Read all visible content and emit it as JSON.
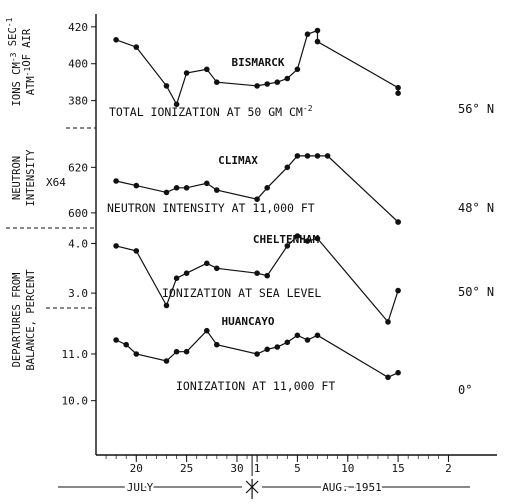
{
  "chart_data": {
    "type": "line",
    "x_axis": {
      "tick_labels": [
        {
          "x": "Jul 20",
          "label": "20"
        },
        {
          "x": "Jul 25",
          "label": "25"
        },
        {
          "x": "Jul 30",
          "label": "30"
        },
        {
          "x": "Aug 1",
          "label": "1"
        },
        {
          "x": "Aug 5",
          "label": "5"
        },
        {
          "x": "Aug 10",
          "label": "10"
        },
        {
          "x": "Aug 15",
          "label": "15"
        },
        {
          "x": "Aug 20",
          "label": "2"
        }
      ],
      "month_labels": [
        "JULY",
        "AUG. 1951"
      ]
    },
    "panels": [
      {
        "station": "BISMARCK",
        "caption": "TOTAL   IONIZATION AT 50 GM CM",
        "caption_sup": "-2",
        "latitude": "56° N",
        "ylabel_lines": [
          "IONS CM",
          "ATM",
          "OF AIR"
        ],
        "ylabel_sups": [
          "-3",
          "SEC",
          "-1",
          "-1"
        ],
        "yticks": [
          420,
          400,
          380
        ],
        "ylim": [
          376,
          421
        ],
        "x": [
          "Jul 18",
          "Jul 20",
          "Jul 23",
          "Jul 24",
          "Jul 25",
          "Jul 27",
          "Jul 28",
          "Aug 1",
          "Aug 2",
          "Aug 3",
          "Aug 4",
          "Aug 5",
          "Aug 6",
          "Aug 7",
          "Aug 7",
          "Aug 15",
          "Aug 15"
        ],
        "values": [
          413,
          409,
          388,
          378,
          395,
          397,
          390,
          388,
          389,
          390,
          392,
          397,
          416,
          418,
          412,
          387,
          384
        ]
      },
      {
        "station": "CLIMAX",
        "caption": "NEUTRON INTENSITY AT 11,000 FT",
        "latitude": "48° N",
        "ylabel_lines": [
          "NEUTRON",
          "INTENSITY"
        ],
        "scale_note": "X64",
        "yticks": [
          620,
          600
        ],
        "ylim": [
          596,
          632
        ],
        "x": [
          "Jul 18",
          "Jul 20",
          "Jul 23",
          "Jul 24",
          "Jul 25",
          "Jul 27",
          "Jul 28",
          "Aug 1",
          "Aug 2",
          "Aug 4",
          "Aug 5",
          "Aug 6",
          "Aug 7",
          "Aug 8",
          "Aug 15",
          "Aug 15"
        ],
        "values": [
          614,
          612,
          609,
          611,
          611,
          613,
          610,
          606,
          611,
          620,
          625,
          625,
          625,
          625,
          596,
          596
        ]
      },
      {
        "station": "CHELTENHAM",
        "caption": "IONIZATION AT SEA LEVEL",
        "latitude": "50° N",
        "yticks": [
          4.0,
          3.0
        ],
        "ylim": [
          2.7,
          4.15
        ],
        "x": [
          "Jul 18",
          "Jul 20",
          "Jul 23",
          "Jul 24",
          "Jul 25",
          "Jul 27",
          "Jul 28",
          "Aug 1",
          "Aug 2",
          "Aug 4",
          "Aug 5",
          "Aug 6",
          "Aug 7",
          "Aug 14",
          "Aug 15"
        ],
        "values": [
          3.95,
          3.85,
          2.75,
          3.3,
          3.4,
          3.6,
          3.5,
          3.4,
          3.35,
          3.95,
          4.15,
          4.05,
          4.1,
          2.42,
          3.05
        ]
      },
      {
        "station": "HUANCAYO",
        "caption": "IONIZATION AT 11,000 FT",
        "latitude": "0°",
        "yticks": [
          11.0,
          10.0
        ],
        "ylim": [
          9.8,
          11.6
        ],
        "x": [
          "Jul 18",
          "Jul 19",
          "Jul 20",
          "Jul 23",
          "Jul 24",
          "Jul 25",
          "Jul 27",
          "Jul 28",
          "Aug 1",
          "Aug 2",
          "Aug 3",
          "Aug 4",
          "Aug 5",
          "Aug 6",
          "Aug 7",
          "Aug 14",
          "Aug 15"
        ],
        "values": [
          11.3,
          11.2,
          11.0,
          10.85,
          11.05,
          11.05,
          11.5,
          11.2,
          11.0,
          11.1,
          11.15,
          11.25,
          11.4,
          11.3,
          11.4,
          10.5,
          10.6
        ]
      }
    ],
    "shared_ylabel_lines": [
      "DEPARTURES FROM",
      "BALANCE, PERCENT"
    ],
    "grid": false,
    "legend": "none"
  }
}
